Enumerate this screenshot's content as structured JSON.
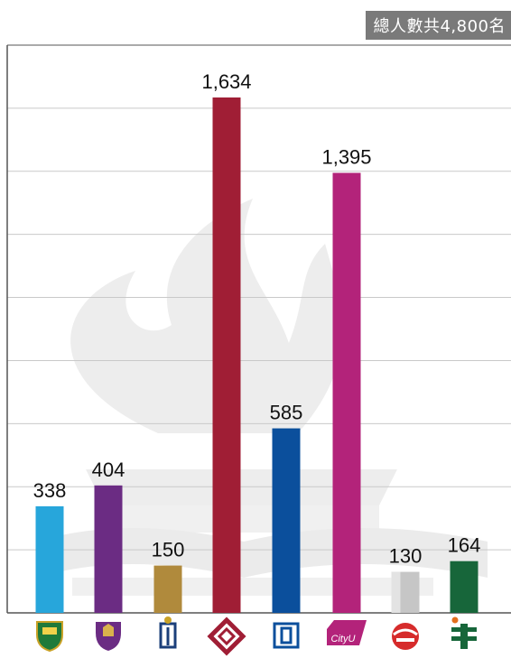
{
  "header": {
    "total_label": "總人數共4,800名"
  },
  "colors": {
    "grid": "#c9c9c9",
    "axis": "#555555",
    "watermark": "#e4e4e4",
    "label": "#111111"
  },
  "chart_data": {
    "type": "bar",
    "title": "",
    "xlabel": "",
    "ylabel": "",
    "ylim": [
      0,
      1800
    ],
    "grid": true,
    "categories": [
      "HKU",
      "CUHK",
      "HKUST",
      "PolyU",
      "EdUHK",
      "CityU",
      "LU",
      "HKMU"
    ],
    "values": [
      338,
      404,
      150,
      1634,
      585,
      1395,
      130,
      164
    ],
    "value_labels": [
      "338",
      "404",
      "150",
      "1,634",
      "585",
      "1,395",
      "130",
      "164"
    ],
    "bar_colors": [
      "#27a6db",
      "#6b2c83",
      "#b08a3c",
      "#a01e35",
      "#0b4f9c",
      "#b3237a",
      "#c6c6c6",
      "#17663a"
    ],
    "icons": [
      "hku-crest-icon",
      "cuhk-crest-icon",
      "hkust-logo-icon",
      "polyu-logo-icon",
      "eduhk-logo-icon",
      "cityu-logo-icon",
      "lingnan-logo-icon",
      "hkmu-logo-icon"
    ],
    "icon_texts": {
      "cityu": "CityU"
    }
  }
}
